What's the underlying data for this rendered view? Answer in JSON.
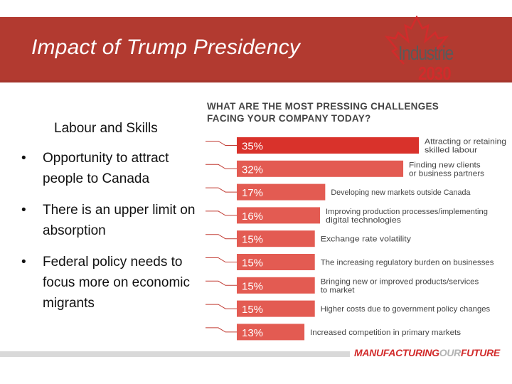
{
  "slide": {
    "title": "Impact of Trump Presidency"
  },
  "logo": {
    "line1": "Industrie",
    "line2": "2030",
    "icon": "maple-leaf-icon",
    "accent_color": "#d22b2b"
  },
  "left_panel": {
    "heading": "Labour and Skills",
    "bullets": [
      "Opportunity to attract people to Canada",
      "There is an upper limit on absorption",
      "Federal policy needs to focus more on economic migrants"
    ],
    "bullet_symbol": "•"
  },
  "footer": {
    "brand_part1": "MANUFACTURING",
    "brand_part2": "OUR",
    "brand_part3": "FUTURE"
  },
  "chart_data": {
    "type": "bar",
    "orientation": "horizontal",
    "title_line1": "WHAT ARE THE MOST PRESSING CHALLENGES",
    "title_line2": "FACING YOUR COMPANY TODAY?",
    "xlim": [
      0,
      35
    ],
    "unit": "%",
    "colors": {
      "highlight": "#d9322b",
      "bar": "#e35b52",
      "label": "#444444",
      "connector": "#c23d35"
    },
    "categories": [
      [
        "Attracting or retaining",
        "skilled labour"
      ],
      [
        "Finding new clients",
        "or business partners"
      ],
      [
        "Developing new markets outside Canada"
      ],
      [
        "Improving production processes/implementing",
        "digital technologies"
      ],
      [
        "Exchange rate volatility"
      ],
      [
        "The increasing regulatory burden on businesses"
      ],
      [
        "Bringing new or improved products/services",
        "to market"
      ],
      [
        "Higher costs due to government policy changes"
      ],
      [
        "Increased competition in primary markets"
      ]
    ],
    "values": [
      35,
      32,
      17,
      16,
      15,
      15,
      15,
      15,
      13
    ],
    "value_labels": [
      "35%",
      "32%",
      "17%",
      "16%",
      "15%",
      "15%",
      "15%",
      "15%",
      "13%"
    ]
  }
}
